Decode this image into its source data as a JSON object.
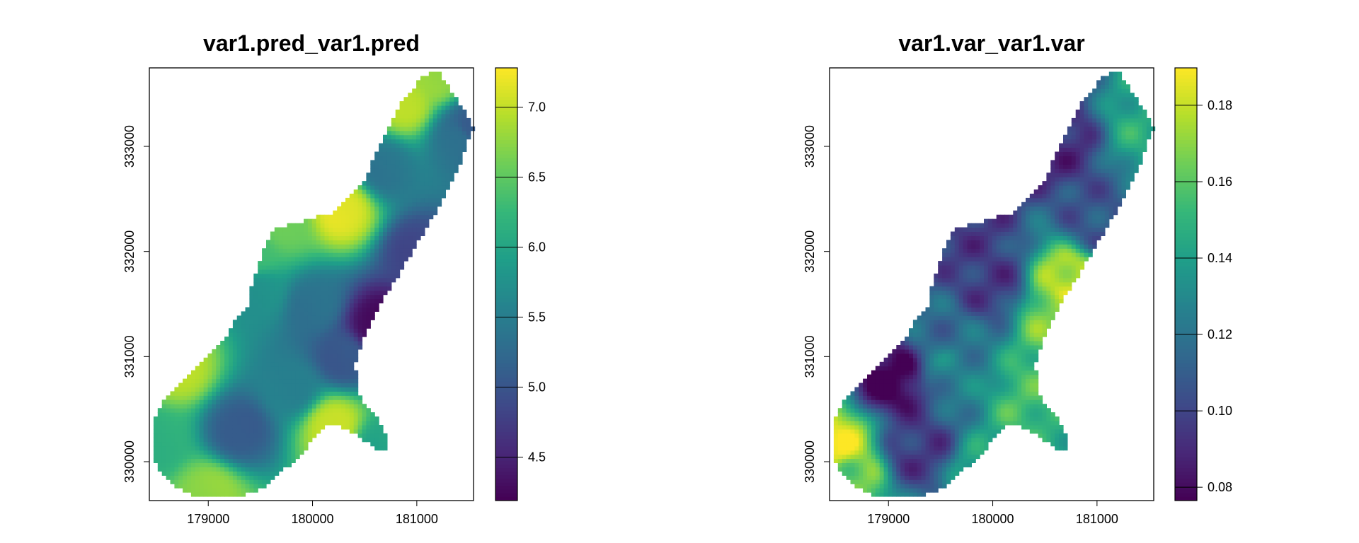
{
  "chart_data": [
    {
      "type": "heatmap",
      "title": "var1.pred_var1.pred",
      "xlabel": "",
      "ylabel": "",
      "xlim": [
        178435,
        181544
      ],
      "ylim": [
        329630,
        333747
      ],
      "xticks": [
        "179000",
        "180000",
        "181000"
      ],
      "yticks": [
        "330000",
        "331000",
        "332000",
        "333000"
      ],
      "colorbar": {
        "range": [
          4.19,
          7.28
        ],
        "ticks": [
          "4.5",
          "5.0",
          "5.5",
          "6.0",
          "6.5",
          "7.0"
        ],
        "palette": "viridis"
      },
      "control_points": [
        [
          180900,
          333400,
          6.9
        ],
        [
          181200,
          333650,
          6.8
        ],
        [
          180300,
          332400,
          7.2
        ],
        [
          179700,
          332250,
          6.5
        ],
        [
          181400,
          333100,
          5.3
        ],
        [
          181500,
          333180,
          5.1
        ],
        [
          180600,
          331300,
          4.2
        ],
        [
          181000,
          332000,
          4.9
        ],
        [
          180700,
          332800,
          5.4
        ],
        [
          180000,
          331500,
          5.3
        ],
        [
          179500,
          331600,
          5.8
        ],
        [
          179450,
          332000,
          6.3
        ],
        [
          178700,
          330900,
          6.9
        ],
        [
          178500,
          330200,
          6.2
        ],
        [
          179000,
          329700,
          6.8
        ],
        [
          179300,
          330300,
          5.0
        ],
        [
          180200,
          330350,
          7.1
        ],
        [
          180650,
          330150,
          6.0
        ],
        [
          179800,
          330700,
          5.6
        ],
        [
          180300,
          331000,
          5.0
        ]
      ]
    },
    {
      "type": "heatmap",
      "title": "var1.var_var1.var",
      "xlabel": "",
      "ylabel": "",
      "xlim": [
        178435,
        181544
      ],
      "ylim": [
        329630,
        333747
      ],
      "xticks": [
        "179000",
        "180000",
        "181000"
      ],
      "yticks": [
        "330000",
        "331000",
        "332000",
        "333000"
      ],
      "colorbar": {
        "range": [
          0.0765,
          0.1898
        ],
        "ticks": [
          "0.08",
          "0.10",
          "0.12",
          "0.14",
          "0.16",
          "0.18"
        ],
        "palette": "viridis"
      },
      "control_points": [
        [
          180750,
          331700,
          0.185
        ],
        [
          180600,
          331400,
          0.17
        ],
        [
          180400,
          330600,
          0.16
        ],
        [
          180700,
          330150,
          0.15
        ],
        [
          178480,
          330150,
          0.19
        ],
        [
          178600,
          329850,
          0.17
        ],
        [
          179900,
          329850,
          0.15
        ],
        [
          181520,
          333150,
          0.15
        ],
        [
          179050,
          330800,
          0.08
        ],
        [
          179500,
          331200,
          0.12
        ],
        [
          179600,
          330900,
          0.13
        ],
        [
          180000,
          331700,
          0.1
        ],
        [
          180600,
          333000,
          0.095
        ],
        [
          181000,
          332300,
          0.11
        ],
        [
          179800,
          332200,
          0.1
        ],
        [
          179300,
          330100,
          0.1
        ]
      ]
    }
  ],
  "outline": [
    [
      181200,
      333725
    ],
    [
      181324,
      333535
    ],
    [
      181465,
      333329
    ],
    [
      181540,
      333180
    ],
    [
      181366,
      332709
    ],
    [
      181158,
      332338
    ],
    [
      180909,
      331925
    ],
    [
      180660,
      331512
    ],
    [
      180494,
      331181
    ],
    [
      180411,
      330933
    ],
    [
      180428,
      330644
    ],
    [
      180577,
      330479
    ],
    [
      180718,
      330231
    ],
    [
      180718,
      330107
    ],
    [
      180618,
      330107
    ],
    [
      180411,
      330273
    ],
    [
      180204,
      330355
    ],
    [
      180079,
      330314
    ],
    [
      179955,
      330149
    ],
    [
      179747,
      329942
    ],
    [
      179498,
      329736
    ],
    [
      179249,
      329653
    ],
    [
      178917,
      329653
    ],
    [
      178668,
      329777
    ],
    [
      178502,
      329942
    ],
    [
      178460,
      330190
    ],
    [
      178502,
      330479
    ],
    [
      178668,
      330686
    ],
    [
      178917,
      330933
    ],
    [
      179166,
      331181
    ],
    [
      179249,
      331346
    ],
    [
      179374,
      331470
    ],
    [
      179415,
      331677
    ],
    [
      179498,
      331925
    ],
    [
      179623,
      332214
    ],
    [
      179830,
      332272
    ],
    [
      180079,
      332338
    ],
    [
      180204,
      332379
    ],
    [
      180328,
      332503
    ],
    [
      180494,
      332668
    ],
    [
      180619,
      332957
    ],
    [
      180743,
      333205
    ],
    [
      180868,
      333453
    ],
    [
      181075,
      333676
    ]
  ]
}
